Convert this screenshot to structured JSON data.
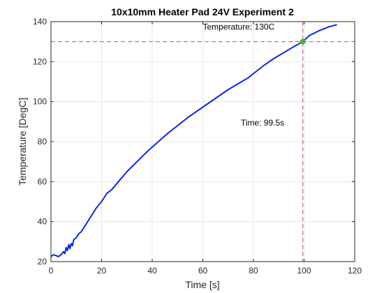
{
  "chart_data": {
    "type": "line",
    "title": "10x10mm Heater Pad 24V Experiment 2",
    "xlabel": "Time [s]",
    "ylabel": "Temperature [DegC]",
    "xlim": [
      0,
      120
    ],
    "ylim": [
      20,
      140
    ],
    "xticks": [
      "0",
      "20",
      "40",
      "60",
      "80",
      "100",
      "120"
    ],
    "yticks": [
      "20",
      "40",
      "60",
      "80",
      "100",
      "120",
      "140"
    ],
    "grid": true,
    "colors": {
      "series": "#0b28d6",
      "threshold_lines": "#c0506e",
      "marker": "#3cb43c",
      "grid": "#e5e5e5",
      "axes": "#262626"
    },
    "series": [
      {
        "x": [
          0,
          1,
          2,
          3,
          4,
          5,
          5.5,
          6,
          6.5,
          7,
          7.5,
          8,
          8.5,
          9,
          10,
          11,
          12,
          14,
          16,
          18,
          20,
          22,
          24,
          26,
          28,
          30,
          34,
          38,
          42,
          46,
          50,
          54,
          58,
          62,
          66,
          70,
          74,
          78,
          80,
          84,
          88,
          92,
          96,
          99.5,
          102,
          106,
          110,
          113
        ],
        "y": [
          22.5,
          23.5,
          23,
          22.5,
          23.5,
          25,
          24,
          27,
          25.5,
          28.5,
          26.5,
          29,
          28,
          31,
          32,
          34,
          35,
          39,
          43,
          47,
          50,
          54,
          56,
          59,
          62,
          65,
          70,
          75,
          79.5,
          84,
          88,
          92,
          95.5,
          99,
          102.5,
          106,
          109,
          112,
          114,
          118,
          121.5,
          124.5,
          127.5,
          130,
          133,
          135.5,
          137.5,
          138.5
        ]
      }
    ],
    "markers": [
      {
        "x": 99.5,
        "y": 130
      }
    ],
    "reference_lines": [
      {
        "axis": "y",
        "value": 130
      },
      {
        "axis": "x",
        "value": 99.5
      }
    ],
    "annotations": [
      {
        "text": "Temperature: 130C",
        "x": 60,
        "y": 136
      },
      {
        "text": "Time: 99.5s",
        "x": 75,
        "y": 88
      }
    ]
  }
}
